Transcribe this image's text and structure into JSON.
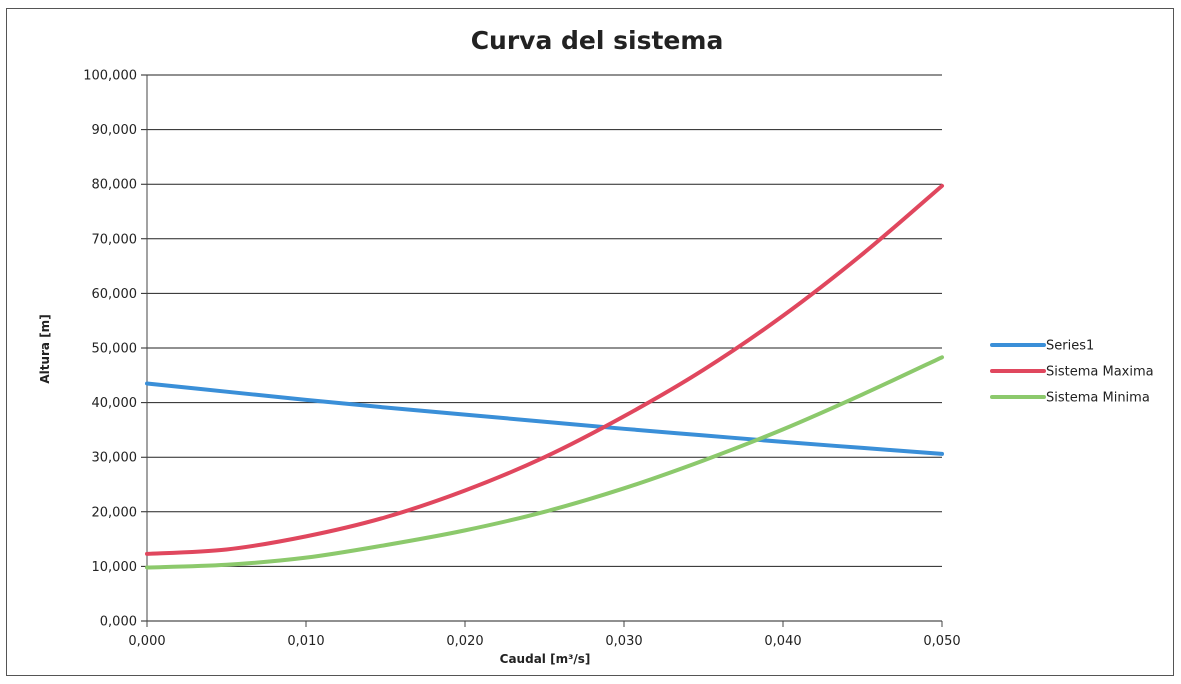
{
  "chart_data": {
    "type": "line",
    "title": "Curva del sistema",
    "xlabel": "Caudal [m³/s]",
    "ylabel": "Altura [m]",
    "xlim": [
      0,
      0.05
    ],
    "ylim": [
      0,
      100
    ],
    "x_ticks": [
      0,
      0.01,
      0.02,
      0.03,
      0.04,
      0.05
    ],
    "x_tick_labels": [
      "0,000",
      "0,010",
      "0,020",
      "0,030",
      "0,040",
      "0,050"
    ],
    "y_ticks": [
      0,
      10,
      20,
      30,
      40,
      50,
      60,
      70,
      80,
      90,
      100
    ],
    "y_tick_labels": [
      "0,000",
      "10,000",
      "20,000",
      "30,000",
      "40,000",
      "50,000",
      "60,000",
      "70,000",
      "80,000",
      "90,000",
      "100,000"
    ],
    "grid": "horizontal",
    "legend_position": "right",
    "x": [
      0,
      0.005,
      0.01,
      0.015,
      0.02,
      0.025,
      0.03,
      0.035,
      0.04,
      0.045,
      0.05
    ],
    "series": [
      {
        "name": "Series1",
        "color": "#3a8fd8",
        "values": [
          43.5,
          42.0,
          40.5,
          39.1,
          37.8,
          36.5,
          35.2,
          34.0,
          32.8,
          31.7,
          30.6
        ]
      },
      {
        "name": "Sistema Maxima",
        "color": "#e0475e",
        "values": [
          12.3,
          13.1,
          15.5,
          19.0,
          23.9,
          30.0,
          37.5,
          46.0,
          55.9,
          67.2,
          79.7
        ]
      },
      {
        "name": "Sistema Minima",
        "color": "#8cc96c",
        "values": [
          9.8,
          10.3,
          11.6,
          13.9,
          16.6,
          20.0,
          24.3,
          29.4,
          35.1,
          41.5,
          48.3
        ]
      }
    ]
  }
}
